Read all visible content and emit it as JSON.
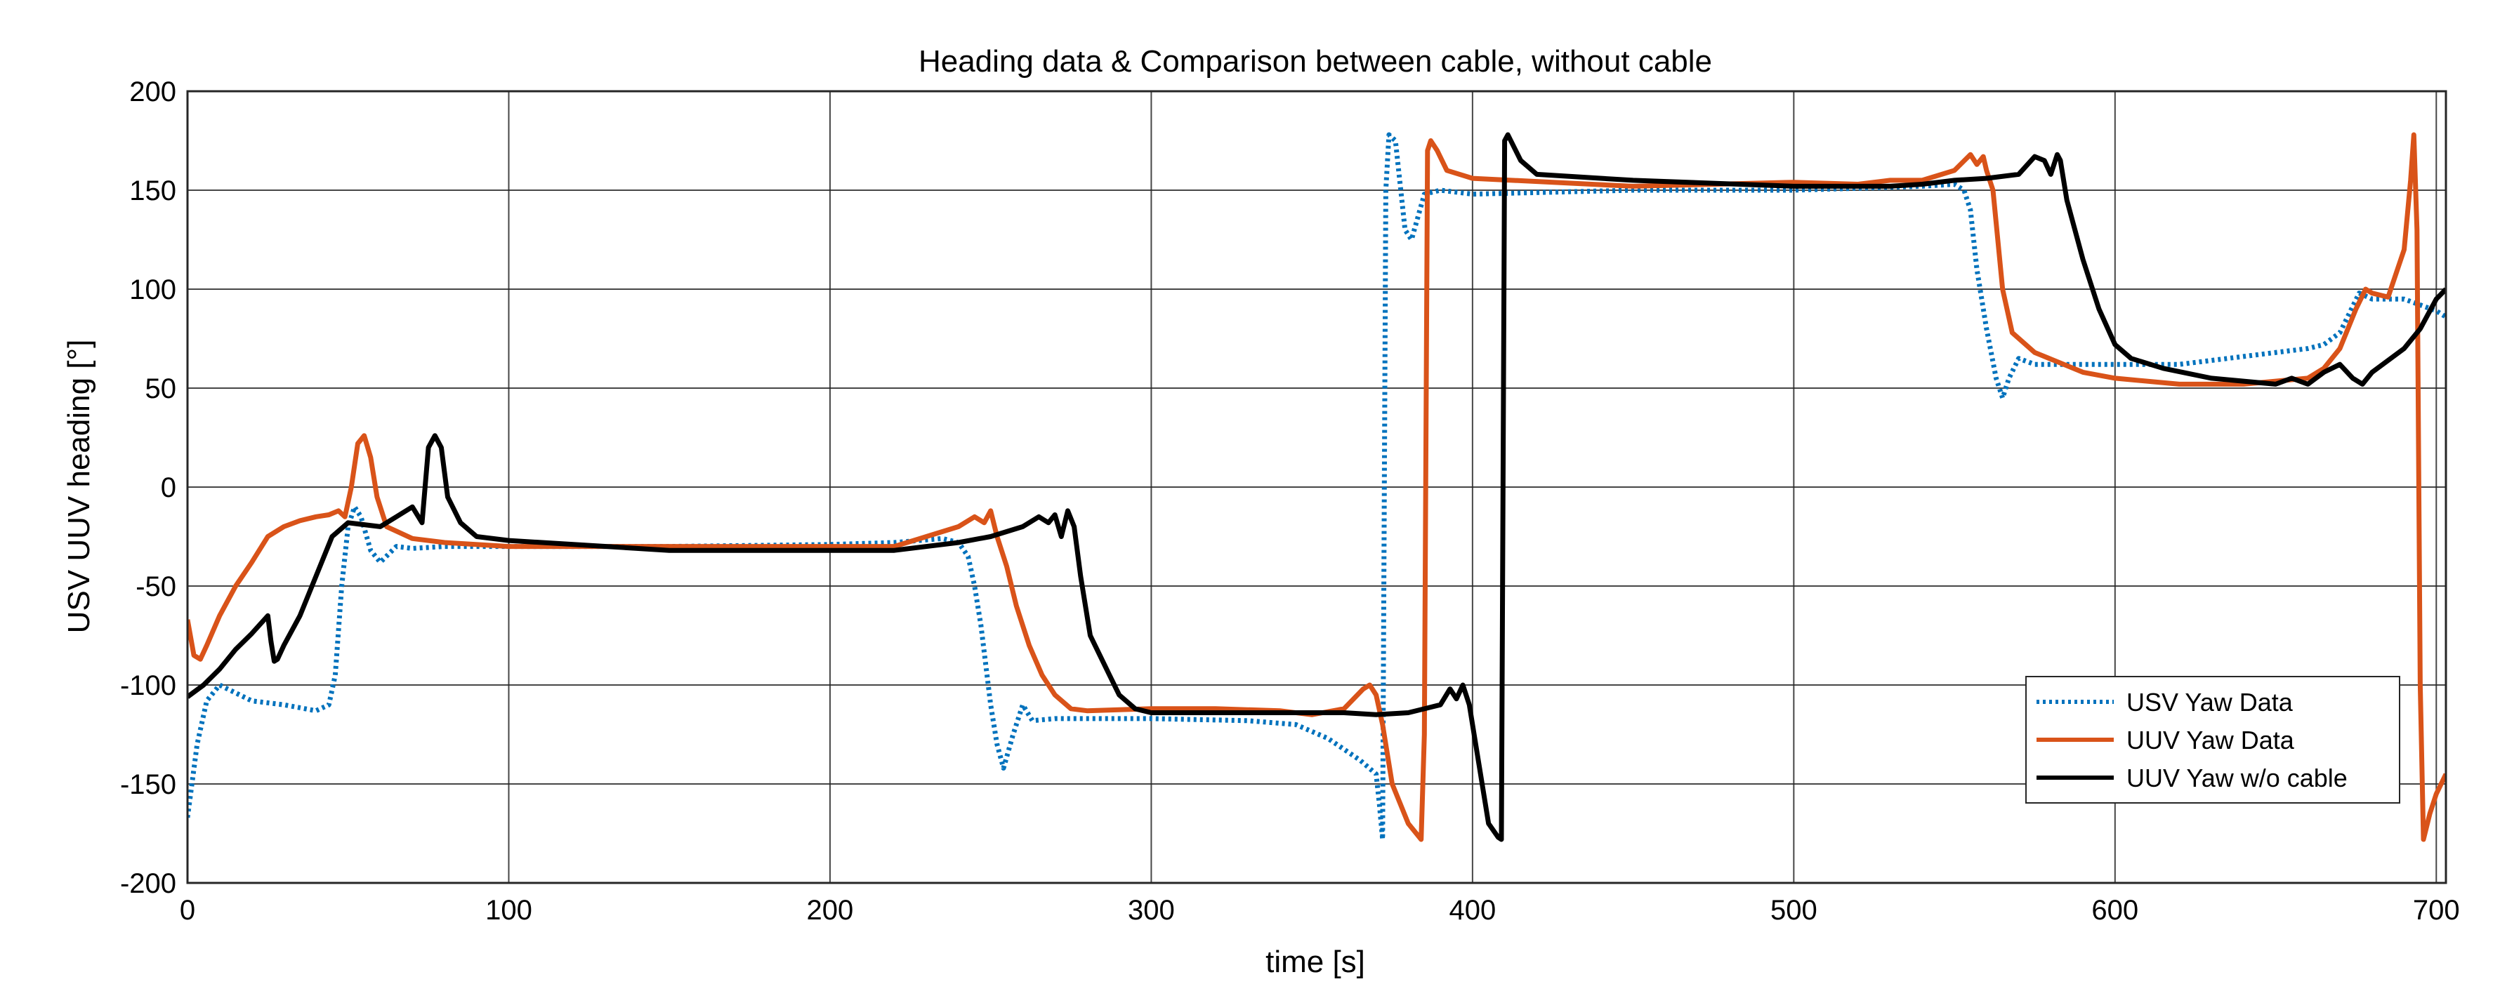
{
  "chart_data": {
    "type": "line",
    "title": "Heading data & Comparison between cable, without cable",
    "xlabel": "time [s]",
    "ylabel": "USV UUV heading [°]",
    "xlim": [
      0,
      703
    ],
    "ylim": [
      -200,
      200
    ],
    "x_ticks": [
      0,
      100,
      200,
      300,
      400,
      500,
      600,
      700
    ],
    "y_ticks": [
      -200,
      -150,
      -100,
      -50,
      0,
      50,
      100,
      150,
      200
    ],
    "grid": true,
    "legend_position": "bottom-right",
    "series": [
      {
        "name": "USV Yaw Data",
        "color": "#0072BD",
        "style": "dotted",
        "points": [
          [
            0,
            -167
          ],
          [
            3,
            -130
          ],
          [
            6,
            -108
          ],
          [
            10,
            -100
          ],
          [
            20,
            -108
          ],
          [
            30,
            -110
          ],
          [
            40,
            -113
          ],
          [
            44,
            -110
          ],
          [
            46,
            -95
          ],
          [
            48,
            -50
          ],
          [
            50,
            -20
          ],
          [
            52,
            -10
          ],
          [
            54,
            -15
          ],
          [
            57,
            -32
          ],
          [
            60,
            -38
          ],
          [
            65,
            -30
          ],
          [
            70,
            -31
          ],
          [
            80,
            -30
          ],
          [
            100,
            -30
          ],
          [
            150,
            -30
          ],
          [
            200,
            -29
          ],
          [
            220,
            -28
          ],
          [
            235,
            -26
          ],
          [
            240,
            -28
          ],
          [
            243,
            -35
          ],
          [
            245,
            -50
          ],
          [
            247,
            -70
          ],
          [
            250,
            -110
          ],
          [
            252,
            -130
          ],
          [
            254,
            -142
          ],
          [
            257,
            -125
          ],
          [
            260,
            -110
          ],
          [
            263,
            -118
          ],
          [
            270,
            -117
          ],
          [
            300,
            -117
          ],
          [
            330,
            -118
          ],
          [
            345,
            -120
          ],
          [
            355,
            -127
          ],
          [
            365,
            -138
          ],
          [
            370,
            -145
          ],
          [
            371,
            -160
          ],
          [
            372,
            -178
          ],
          [
            373,
            150
          ],
          [
            374,
            178
          ],
          [
            376,
            175
          ],
          [
            379,
            130
          ],
          [
            381,
            125
          ],
          [
            385,
            148
          ],
          [
            390,
            150
          ],
          [
            400,
            148
          ],
          [
            450,
            150
          ],
          [
            500,
            150
          ],
          [
            540,
            152
          ],
          [
            550,
            153
          ],
          [
            553,
            150
          ],
          [
            555,
            140
          ],
          [
            557,
            110
          ],
          [
            560,
            80
          ],
          [
            563,
            55
          ],
          [
            565,
            45
          ],
          [
            567,
            55
          ],
          [
            570,
            65
          ],
          [
            575,
            62
          ],
          [
            600,
            62
          ],
          [
            620,
            62
          ],
          [
            640,
            66
          ],
          [
            660,
            70
          ],
          [
            665,
            72
          ],
          [
            670,
            78
          ],
          [
            676,
            98
          ],
          [
            680,
            95
          ],
          [
            690,
            95
          ],
          [
            700,
            89
          ],
          [
            703,
            86
          ]
        ]
      },
      {
        "name": "UUV Yaw Data",
        "color": "#D95319",
        "style": "solid",
        "points": [
          [
            0,
            -67
          ],
          [
            2,
            -85
          ],
          [
            4,
            -87
          ],
          [
            6,
            -80
          ],
          [
            10,
            -65
          ],
          [
            15,
            -50
          ],
          [
            20,
            -38
          ],
          [
            25,
            -25
          ],
          [
            30,
            -20
          ],
          [
            35,
            -17
          ],
          [
            40,
            -15
          ],
          [
            44,
            -14
          ],
          [
            47,
            -12
          ],
          [
            49,
            -15
          ],
          [
            51,
            0
          ],
          [
            53,
            22
          ],
          [
            55,
            26
          ],
          [
            57,
            15
          ],
          [
            59,
            -5
          ],
          [
            62,
            -20
          ],
          [
            70,
            -26
          ],
          [
            80,
            -28
          ],
          [
            100,
            -30
          ],
          [
            150,
            -30
          ],
          [
            200,
            -30
          ],
          [
            220,
            -30
          ],
          [
            230,
            -25
          ],
          [
            240,
            -20
          ],
          [
            245,
            -15
          ],
          [
            248,
            -18
          ],
          [
            250,
            -12
          ],
          [
            252,
            -25
          ],
          [
            255,
            -40
          ],
          [
            258,
            -60
          ],
          [
            262,
            -80
          ],
          [
            266,
            -95
          ],
          [
            270,
            -105
          ],
          [
            275,
            -112
          ],
          [
            280,
            -113
          ],
          [
            300,
            -112
          ],
          [
            320,
            -112
          ],
          [
            340,
            -113
          ],
          [
            350,
            -115
          ],
          [
            360,
            -112
          ],
          [
            363,
            -107
          ],
          [
            366,
            -102
          ],
          [
            368,
            -100
          ],
          [
            370,
            -105
          ],
          [
            372,
            -120
          ],
          [
            375,
            -150
          ],
          [
            380,
            -170
          ],
          [
            384,
            -178
          ],
          [
            385,
            -125
          ],
          [
            386,
            170
          ],
          [
            387,
            175
          ],
          [
            389,
            170
          ],
          [
            392,
            160
          ],
          [
            400,
            156
          ],
          [
            450,
            152
          ],
          [
            500,
            154
          ],
          [
            520,
            153
          ],
          [
            530,
            155
          ],
          [
            540,
            155
          ],
          [
            550,
            160
          ],
          [
            555,
            168
          ],
          [
            557,
            163
          ],
          [
            559,
            167
          ],
          [
            560,
            160
          ],
          [
            562,
            150
          ],
          [
            565,
            100
          ],
          [
            568,
            78
          ],
          [
            575,
            68
          ],
          [
            590,
            58
          ],
          [
            600,
            55
          ],
          [
            620,
            52
          ],
          [
            640,
            52
          ],
          [
            660,
            55
          ],
          [
            665,
            60
          ],
          [
            670,
            70
          ],
          [
            675,
            90
          ],
          [
            678,
            100
          ],
          [
            680,
            98
          ],
          [
            685,
            96
          ],
          [
            690,
            120
          ],
          [
            692,
            155
          ],
          [
            693,
            178
          ],
          [
            694,
            130
          ],
          [
            695,
            -100
          ],
          [
            696,
            -178
          ],
          [
            698,
            -165
          ],
          [
            700,
            -155
          ],
          [
            703,
            -145
          ]
        ]
      },
      {
        "name": "UUV Yaw w/o cable",
        "color": "#000000",
        "style": "solid",
        "points": [
          [
            0,
            -106
          ],
          [
            5,
            -100
          ],
          [
            10,
            -92
          ],
          [
            15,
            -82
          ],
          [
            20,
            -74
          ],
          [
            25,
            -65
          ],
          [
            26,
            -78
          ],
          [
            27,
            -88
          ],
          [
            28,
            -87
          ],
          [
            30,
            -80
          ],
          [
            35,
            -65
          ],
          [
            40,
            -45
          ],
          [
            45,
            -25
          ],
          [
            50,
            -18
          ],
          [
            60,
            -20
          ],
          [
            65,
            -15
          ],
          [
            70,
            -10
          ],
          [
            73,
            -18
          ],
          [
            75,
            20
          ],
          [
            77,
            26
          ],
          [
            79,
            20
          ],
          [
            81,
            -5
          ],
          [
            85,
            -18
          ],
          [
            90,
            -25
          ],
          [
            100,
            -27
          ],
          [
            150,
            -32
          ],
          [
            200,
            -32
          ],
          [
            220,
            -32
          ],
          [
            240,
            -28
          ],
          [
            250,
            -25
          ],
          [
            260,
            -20
          ],
          [
            265,
            -15
          ],
          [
            268,
            -18
          ],
          [
            270,
            -14
          ],
          [
            272,
            -25
          ],
          [
            274,
            -12
          ],
          [
            276,
            -20
          ],
          [
            278,
            -45
          ],
          [
            281,
            -75
          ],
          [
            284,
            -85
          ],
          [
            287,
            -95
          ],
          [
            290,
            -105
          ],
          [
            295,
            -112
          ],
          [
            300,
            -114
          ],
          [
            320,
            -114
          ],
          [
            340,
            -114
          ],
          [
            360,
            -114
          ],
          [
            370,
            -115
          ],
          [
            380,
            -114
          ],
          [
            390,
            -110
          ],
          [
            393,
            -102
          ],
          [
            395,
            -107
          ],
          [
            397,
            -100
          ],
          [
            399,
            -110
          ],
          [
            402,
            -140
          ],
          [
            405,
            -170
          ],
          [
            408,
            -177
          ],
          [
            409,
            -178
          ],
          [
            410,
            175
          ],
          [
            411,
            178
          ],
          [
            415,
            165
          ],
          [
            420,
            158
          ],
          [
            450,
            155
          ],
          [
            500,
            152
          ],
          [
            530,
            152
          ],
          [
            540,
            153
          ],
          [
            550,
            155
          ],
          [
            560,
            156
          ],
          [
            570,
            158
          ],
          [
            575,
            167
          ],
          [
            578,
            165
          ],
          [
            580,
            158
          ],
          [
            582,
            168
          ],
          [
            583,
            165
          ],
          [
            585,
            145
          ],
          [
            590,
            115
          ],
          [
            595,
            90
          ],
          [
            600,
            72
          ],
          [
            605,
            65
          ],
          [
            615,
            60
          ],
          [
            630,
            55
          ],
          [
            650,
            52
          ],
          [
            655,
            55
          ],
          [
            660,
            52
          ],
          [
            665,
            58
          ],
          [
            670,
            62
          ],
          [
            674,
            55
          ],
          [
            677,
            52
          ],
          [
            680,
            58
          ],
          [
            690,
            70
          ],
          [
            695,
            80
          ],
          [
            700,
            95
          ],
          [
            703,
            100
          ]
        ]
      }
    ]
  }
}
